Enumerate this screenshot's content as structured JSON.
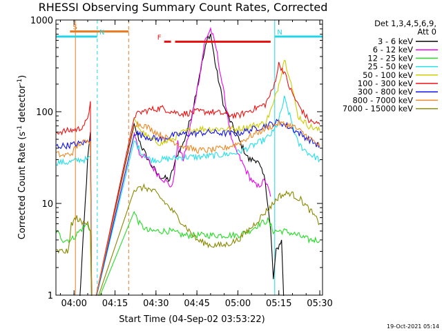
{
  "chart_data": {
    "type": "line",
    "title": "RHESSI Observing Summary Count Rates, Corrected",
    "xlabel": "Start Time (04-Sep-02 03:53:22)",
    "ylabel": "Corrected Count Rate (s⁻¹ detector⁻¹)",
    "ylabel_main": "Corrected Count Rate (s",
    "ylabel_sup1": "-1",
    "ylabel_mid": " detector",
    "ylabel_sup2": "-1",
    "ylabel_end": ")",
    "yscale": "log",
    "ylim": [
      1,
      1000
    ],
    "xlim": [
      "03:53:22",
      "05:31:00"
    ],
    "xticks": [
      "04:00",
      "04:15",
      "04:30",
      "04:45",
      "05:00",
      "05:15",
      "05:30"
    ],
    "yticks": [
      "1",
      "10",
      "100",
      "1000"
    ],
    "legend_header": [
      "Det 1,3,4,5,6,9,",
      "Att 0"
    ],
    "legend_position": "right",
    "timestamp": "19-Oct-2021 05:14",
    "flags": [
      {
        "label": "S",
        "color": "#e87a20",
        "start": "03:58:30",
        "end": "04:20:00",
        "y": 750
      },
      {
        "label": "N",
        "color": "#22d5e8",
        "start": "03:53:22",
        "end": "04:08:30",
        "y": 660
      },
      {
        "label": "N",
        "color": "#22d5e8",
        "start": "05:13:30",
        "end": "05:31:00",
        "y": 660
      },
      {
        "label": "F",
        "color": "#ee1111",
        "start": "04:33:00",
        "end": "04:35:30",
        "y": 580
      },
      {
        "label": "",
        "color": "#ee1111",
        "start": "04:37:00",
        "end": "05:12:00",
        "y": 580
      }
    ],
    "vlines": [
      {
        "time": "03:53:22",
        "color": "#22d5e8",
        "style": "solid"
      },
      {
        "time": "04:00:30",
        "color": "#e87a20",
        "style": "solid"
      },
      {
        "time": "04:08:30",
        "color": "#22d5e8",
        "style": "dashed"
      },
      {
        "time": "04:20:00",
        "color": "#e87a20",
        "style": "dashed"
      },
      {
        "time": "05:13:30",
        "color": "#22d5e8",
        "style": "solid"
      },
      {
        "time": "05:31:00",
        "color": "#22d5e8",
        "style": "dashed"
      }
    ],
    "series": [
      {
        "name": "3 - 6 keV",
        "color": "#000000",
        "x": [
          "03:53:30",
          "03:58:00",
          "04:02:00",
          "04:05:00",
          "04:06:00",
          "04:06:30",
          "04:22:00",
          "04:25:00",
          "04:28:00",
          "04:31:00",
          "04:35:00",
          "04:38:00",
          "04:40:00",
          "04:43:00",
          "04:46:00",
          "04:49:00",
          "04:50:00",
          "04:52:00",
          "04:55:00",
          "04:58:00",
          "05:01:00",
          "05:04:00",
          "05:07:00",
          "05:10:00",
          "05:12:00",
          "05:13:00",
          "05:14:00",
          "05:16:00",
          "05:17:00"
        ],
        "y": [
          0,
          0,
          0.8,
          30,
          60,
          0,
          70,
          40,
          27,
          20,
          18,
          35,
          45,
          90,
          260,
          650,
          700,
          300,
          110,
          70,
          45,
          30,
          30,
          18,
          5,
          1.5,
          3,
          4,
          0
        ]
      },
      {
        "name": "6 - 12 keV",
        "color": "#ee00ee",
        "x": [
          "04:22:00",
          "04:24:00",
          "04:27:00",
          "04:30:00",
          "04:33:00",
          "04:36:00",
          "04:38:00",
          "04:40:00",
          "04:43:00",
          "04:46:00",
          "04:48:00",
          "04:50:00",
          "04:52:00",
          "04:55:00",
          "04:58:00",
          "05:01:00",
          "05:04:00",
          "05:07:00",
          "05:10:00",
          "05:12:00"
        ],
        "y": [
          60,
          35,
          30,
          22,
          18,
          15,
          45,
          30,
          80,
          250,
          600,
          800,
          500,
          150,
          45,
          30,
          20,
          15,
          18,
          12
        ]
      },
      {
        "name": "12 - 25 keV",
        "color": "#22dd22",
        "x": [
          "03:53:30",
          "03:56:00",
          "03:59:00",
          "04:02:00",
          "04:05:00",
          "04:06:00",
          "04:06:30",
          "04:22:00",
          "04:24:00",
          "04:27:00",
          "04:30:00",
          "04:35:00",
          "04:40:00",
          "04:45:00",
          "04:50:00",
          "04:55:00",
          "05:00:00",
          "05:04:00",
          "05:08:00",
          "05:11:00",
          "05:13:00",
          "05:17:00",
          "05:22:00",
          "05:26:00",
          "05:30:00"
        ],
        "y": [
          5,
          4,
          4,
          5,
          6,
          5,
          0,
          8,
          6,
          5,
          5,
          5,
          4.5,
          4.5,
          4.5,
          4.5,
          4.5,
          5,
          6,
          6.5,
          5,
          5,
          4.5,
          4,
          4
        ]
      },
      {
        "name": "25 - 50 keV",
        "color": "#22e0e8",
        "x": [
          "03:53:30",
          "03:58:00",
          "04:02:00",
          "04:05:00",
          "04:06:00",
          "04:06:30",
          "04:22:00",
          "04:25:00",
          "04:28:00",
          "04:32:00",
          "04:36:00",
          "04:40:00",
          "04:45:00",
          "04:50:00",
          "04:55:00",
          "05:00:00",
          "05:05:00",
          "05:10:00",
          "05:13:00",
          "05:15:00",
          "05:17:00",
          "05:19:00",
          "05:22:00",
          "05:26:00",
          "05:30:00"
        ],
        "y": [
          28,
          28,
          30,
          30,
          32,
          0,
          48,
          35,
          30,
          30,
          31,
          32,
          32,
          33,
          34,
          36,
          42,
          50,
          60,
          80,
          140,
          90,
          45,
          35,
          30
        ]
      },
      {
        "name": "50 - 100 keV",
        "color": "#cccc00",
        "x": [
          "04:22:00",
          "04:25:00",
          "04:28:00",
          "04:32:00",
          "04:36:00",
          "04:40:00",
          "04:45:00",
          "04:50:00",
          "04:55:00",
          "05:00:00",
          "05:05:00",
          "05:10:00",
          "05:13:00",
          "05:15:00",
          "05:17:00",
          "05:19:00",
          "05:22:00",
          "05:26:00",
          "05:30:00"
        ],
        "y": [
          80,
          60,
          50,
          45,
          50,
          60,
          65,
          65,
          65,
          65,
          70,
          75,
          120,
          200,
          380,
          240,
          90,
          70,
          62
        ]
      },
      {
        "name": "100 - 300 keV",
        "color": "#ee1111",
        "x": [
          "03:53:30",
          "03:58:00",
          "04:02:00",
          "04:05:00",
          "04:06:00",
          "04:06:30",
          "04:22:00",
          "04:25:00",
          "04:28:00",
          "04:32:00",
          "04:36:00",
          "04:40:00",
          "04:45:00",
          "04:50:00",
          "04:55:00",
          "05:00:00",
          "05:05:00",
          "05:10:00",
          "05:13:00",
          "05:15:00",
          "05:17:00",
          "05:19:00",
          "05:22:00",
          "05:26:00",
          "05:30:00"
        ],
        "y": [
          60,
          62,
          65,
          80,
          130,
          0,
          90,
          100,
          105,
          110,
          100,
          95,
          100,
          100,
          95,
          90,
          105,
          120,
          180,
          330,
          270,
          180,
          120,
          80,
          72
        ]
      },
      {
        "name": "300 - 800 keV",
        "color": "#1111ee",
        "x": [
          "03:53:30",
          "03:58:00",
          "04:02:00",
          "04:05:00",
          "04:06:00",
          "04:06:30",
          "04:22:00",
          "04:25:00",
          "04:28:00",
          "04:32:00",
          "04:36:00",
          "04:40:00",
          "04:45:00",
          "04:50:00",
          "04:55:00",
          "05:00:00",
          "05:05:00",
          "05:10:00",
          "05:15:00",
          "05:20:00",
          "05:25:00",
          "05:30:00"
        ],
        "y": [
          42,
          43,
          45,
          47,
          50,
          0,
          60,
          55,
          52,
          50,
          55,
          57,
          58,
          60,
          58,
          58,
          64,
          70,
          78,
          65,
          52,
          42
        ]
      },
      {
        "name": "800 - 7000 keV",
        "color": "#ee8822",
        "x": [
          "03:53:30",
          "03:56:00",
          "03:59:00",
          "04:02:00",
          "04:05:00",
          "04:06:00",
          "04:06:30",
          "04:22:00",
          "04:25:00",
          "04:28:00",
          "04:32:00",
          "04:36:00",
          "04:40:00",
          "04:45:00",
          "04:50:00",
          "04:55:00",
          "05:00:00",
          "05:05:00",
          "05:10:00",
          "05:15:00",
          "05:20:00",
          "05:25:00",
          "05:30:00"
        ],
        "y": [
          35,
          33,
          35,
          45,
          47,
          48,
          0,
          75,
          72,
          65,
          55,
          48,
          42,
          38,
          38,
          40,
          45,
          55,
          65,
          75,
          70,
          55,
          42
        ]
      },
      {
        "name": "7000 - 15000 keV",
        "color": "#888800",
        "x": [
          "03:53:30",
          "03:56:00",
          "03:58:00",
          "03:59:00",
          "04:01:00",
          "04:03:00",
          "04:05:00",
          "04:06:00",
          "04:06:30",
          "04:22:00",
          "04:26:00",
          "04:30:00",
          "04:35:00",
          "04:40:00",
          "04:45:00",
          "04:50:00",
          "04:55:00",
          "05:00:00",
          "05:05:00",
          "05:10:00",
          "05:13:00",
          "05:15:00",
          "05:19:00",
          "05:23:00",
          "05:27:00",
          "05:30:00"
        ],
        "y": [
          3,
          3,
          3,
          6,
          7,
          6,
          6.5,
          5,
          0,
          14,
          15,
          13,
          9,
          6,
          4,
          3.5,
          3.5,
          4,
          5.5,
          8,
          10,
          12,
          13,
          11,
          8,
          6
        ]
      }
    ]
  }
}
